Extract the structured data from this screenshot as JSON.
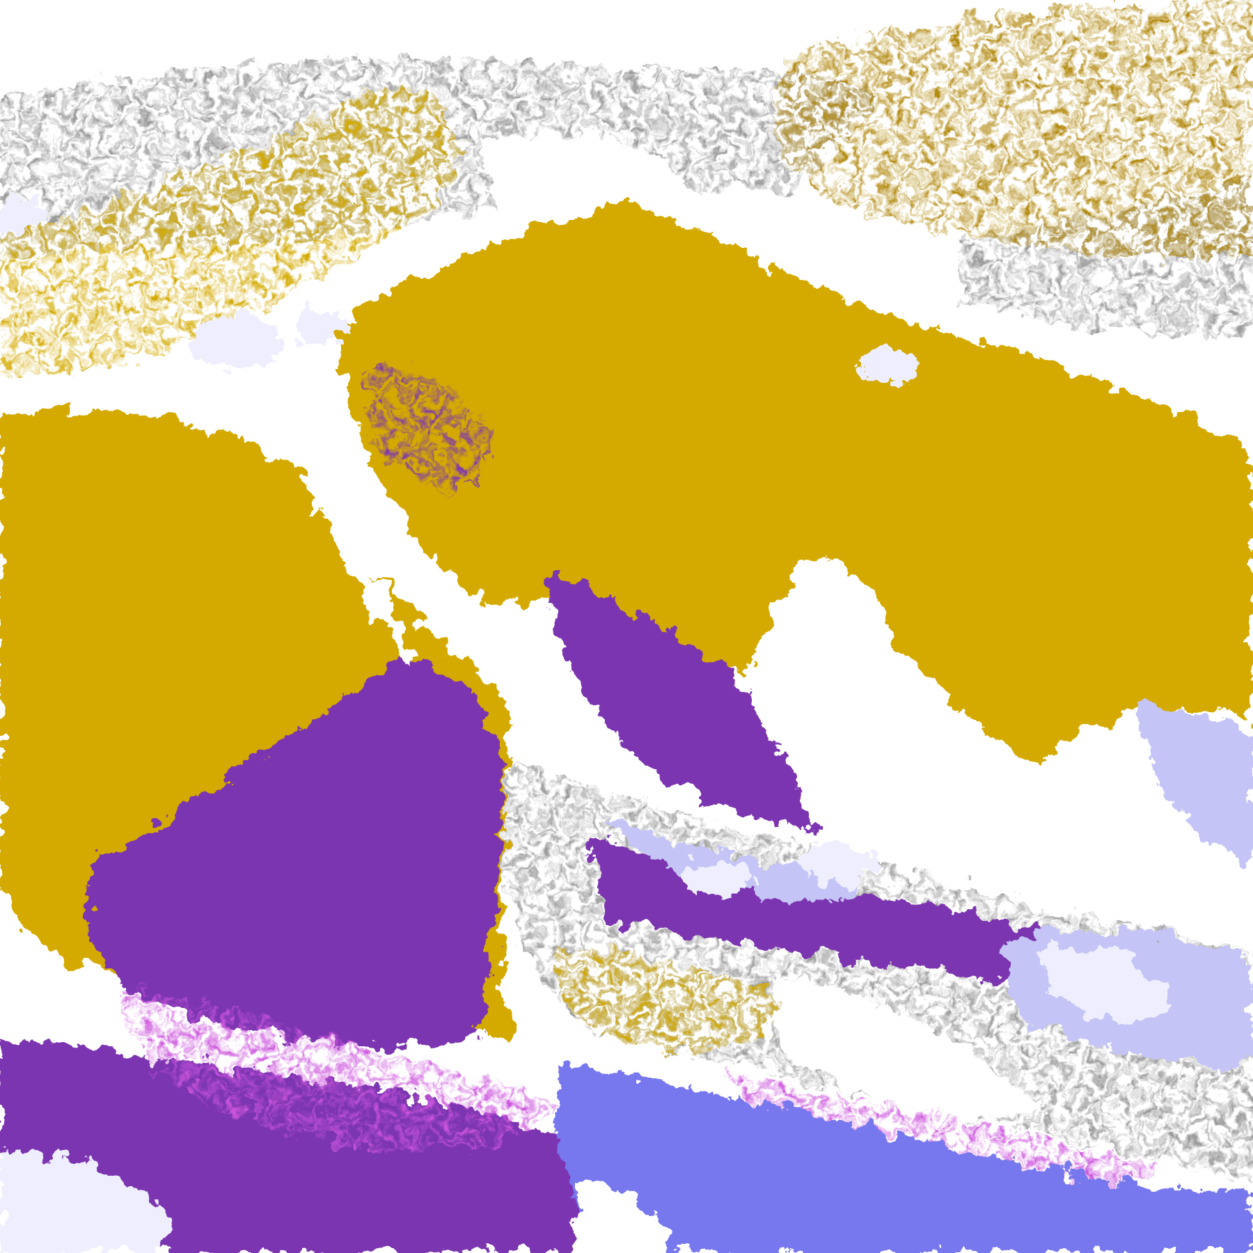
{
  "palette": {
    "background": "#ffffff",
    "gold": "#d4aa00",
    "dark_gold": "#b38a10",
    "purple": "#7b35b0",
    "magenta": "#cc55dd",
    "blue": "#7777ee",
    "lavender": "#c4c4f6",
    "pale_lavender": "#eeeeff",
    "gray": "#9a9a9a"
  }
}
